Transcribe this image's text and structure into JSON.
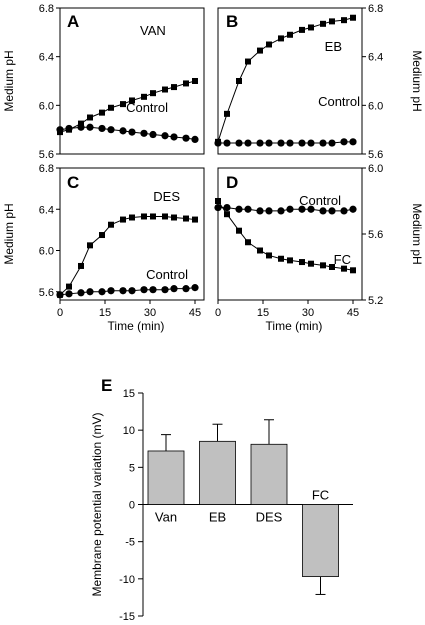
{
  "chart_data": [
    {
      "type": "line",
      "panel_label": "A",
      "xlabel": "",
      "ylabel": "Medium pH",
      "ylim": [
        5.6,
        6.8
      ],
      "yticks": [
        "5.6",
        "6.0",
        "6.4",
        "6.8"
      ],
      "xlim": [
        0,
        48
      ],
      "x": [
        0,
        3,
        7,
        10,
        14,
        17,
        21,
        24,
        28,
        31,
        35,
        38,
        42,
        45
      ],
      "series": [
        {
          "name": "VAN",
          "marker": "square",
          "values": [
            5.78,
            5.8,
            5.85,
            5.9,
            5.94,
            5.98,
            6.01,
            6.04,
            6.07,
            6.1,
            6.13,
            6.15,
            6.18,
            6.2
          ]
        },
        {
          "name": "Control",
          "marker": "circle",
          "values": [
            5.8,
            5.81,
            5.82,
            5.82,
            5.81,
            5.8,
            5.79,
            5.78,
            5.77,
            5.76,
            5.75,
            5.74,
            5.73,
            5.72
          ]
        }
      ]
    },
    {
      "type": "line",
      "panel_label": "B",
      "xlabel": "",
      "ylabel": "Medium pH",
      "ylim": [
        5.6,
        6.8
      ],
      "yticks": [
        "5.6",
        "6.0",
        "6.4",
        "6.8"
      ],
      "xlim": [
        0,
        48
      ],
      "x": [
        0,
        3,
        7,
        10,
        14,
        17,
        21,
        24,
        28,
        31,
        35,
        38,
        42,
        45
      ],
      "series": [
        {
          "name": "EB",
          "marker": "square",
          "values": [
            5.7,
            5.93,
            6.2,
            6.36,
            6.45,
            6.5,
            6.55,
            6.58,
            6.62,
            6.64,
            6.67,
            6.69,
            6.7,
            6.72
          ]
        },
        {
          "name": "Control",
          "marker": "circle",
          "values": [
            5.69,
            5.69,
            5.69,
            5.69,
            5.69,
            5.69,
            5.69,
            5.69,
            5.69,
            5.69,
            5.69,
            5.69,
            5.7,
            5.7
          ]
        }
      ]
    },
    {
      "type": "line",
      "panel_label": "C",
      "xlabel": "Time (min)",
      "ylabel": "Medium pH",
      "ylim": [
        5.52,
        6.8
      ],
      "yticks": [
        "5.6",
        "6.0",
        "6.4",
        "6.8"
      ],
      "xlim": [
        0,
        48
      ],
      "xticks": [
        "0",
        "15",
        "30",
        "45"
      ],
      "x": [
        0,
        3,
        7,
        10,
        14,
        17,
        21,
        24,
        28,
        31,
        35,
        38,
        42,
        45
      ],
      "series": [
        {
          "name": "DES",
          "marker": "square",
          "values": [
            5.57,
            5.65,
            5.85,
            6.05,
            6.15,
            6.25,
            6.3,
            6.32,
            6.33,
            6.33,
            6.33,
            6.32,
            6.31,
            6.3
          ]
        },
        {
          "name": "Control",
          "marker": "circle",
          "values": [
            5.57,
            5.58,
            5.59,
            5.6,
            5.6,
            5.61,
            5.61,
            5.61,
            5.62,
            5.62,
            5.62,
            5.63,
            5.63,
            5.64
          ]
        }
      ]
    },
    {
      "type": "line",
      "panel_label": "D",
      "xlabel": "Time (min)",
      "ylabel": "Medium pH",
      "ylim": [
        5.2,
        6.0
      ],
      "yticks": [
        "5.2",
        "5.6",
        "6.0"
      ],
      "xlim": [
        0,
        48
      ],
      "xticks": [
        "0",
        "15",
        "30",
        "45"
      ],
      "x": [
        0,
        3,
        7,
        10,
        14,
        17,
        21,
        24,
        28,
        31,
        35,
        38,
        42,
        45
      ],
      "series": [
        {
          "name": "Control",
          "marker": "circle",
          "values": [
            5.76,
            5.76,
            5.75,
            5.75,
            5.74,
            5.74,
            5.74,
            5.75,
            5.75,
            5.75,
            5.74,
            5.74,
            5.74,
            5.75
          ]
        },
        {
          "name": "FC",
          "marker": "square",
          "values": [
            5.8,
            5.72,
            5.62,
            5.55,
            5.5,
            5.47,
            5.45,
            5.44,
            5.43,
            5.42,
            5.41,
            5.4,
            5.39,
            5.38
          ]
        }
      ]
    },
    {
      "type": "bar",
      "panel_label": "E",
      "xlabel": "",
      "ylabel": "Membrane potential variation (mV)",
      "ylim": [
        -15,
        15
      ],
      "yticks": [
        "15",
        "10",
        "5",
        "0",
        "-5",
        "-10",
        "-15"
      ],
      "categories": [
        "Van",
        "EB",
        "DES",
        "FC"
      ],
      "values": [
        7.2,
        8.5,
        8.1,
        -9.7
      ],
      "errors": [
        2.2,
        2.3,
        3.3,
        2.4
      ],
      "bar_color": "#c0c0c0"
    }
  ]
}
